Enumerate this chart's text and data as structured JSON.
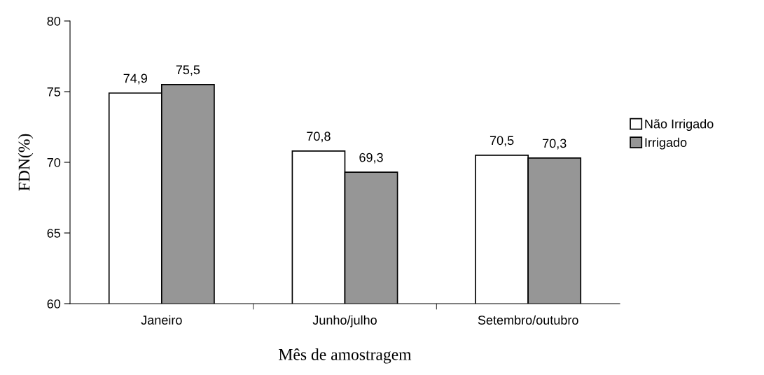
{
  "chart_data": {
    "type": "bar",
    "xlabel": "Mês de amostragem",
    "ylabel": "FDN(%)",
    "categories": [
      "Janeiro",
      "Junho/julho",
      "Setembro/outubro"
    ],
    "series": [
      {
        "name": "Não Irrigado",
        "color": "#ffffff",
        "values": [
          74.9,
          70.8,
          70.5
        ],
        "value_labels": [
          "74,9",
          "70,8",
          "70,5"
        ]
      },
      {
        "name": "Irrigado",
        "color": "#969696",
        "values": [
          75.5,
          69.3,
          70.3
        ],
        "value_labels": [
          "75,5",
          "69,3",
          "70,3"
        ]
      }
    ],
    "ylim": [
      60,
      80
    ],
    "yticks": [
      60,
      65,
      70,
      75,
      80
    ],
    "grid": false,
    "legend": "right"
  }
}
